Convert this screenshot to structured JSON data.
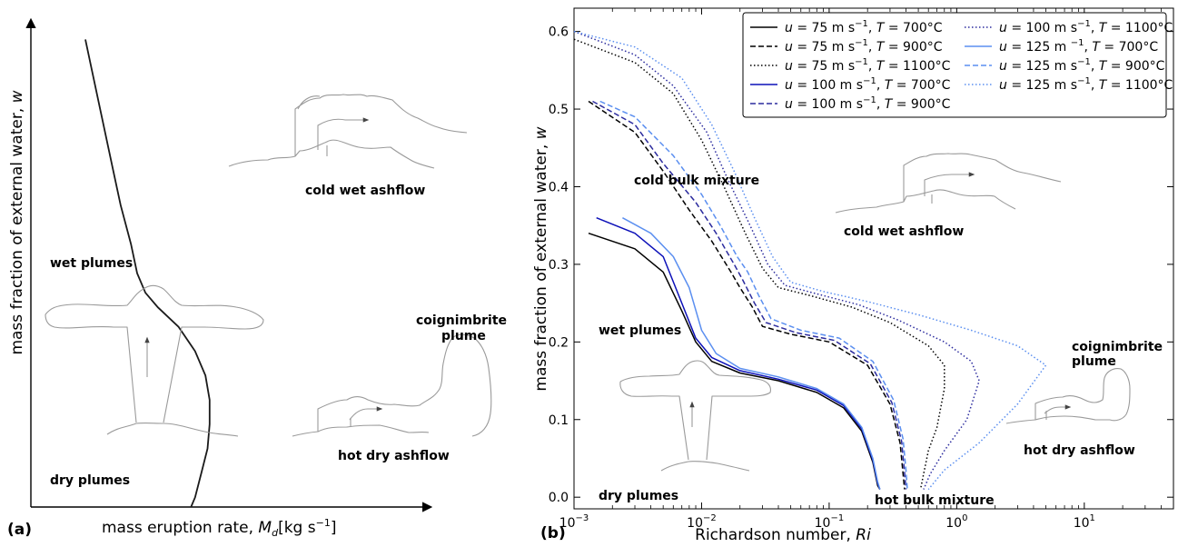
{
  "chart_data": [
    {
      "panel_label": "(a)",
      "type": "line",
      "xlabel": "mass eruption rate, ",
      "xlabel_math": "M",
      "xlabel_sub": "d",
      "xlabel_unit": "[kg s",
      "xlabel_exp": "−1",
      "xlabel_close": "]",
      "ylabel_text": "mass fraction of external water, ",
      "ylabel_var": "w",
      "annotations": {
        "wet_plumes": "wet plumes",
        "dry_plumes": "dry plumes",
        "cold_wet_ashflow": "cold wet ashflow",
        "hot_dry_ashflow": "hot dry ashflow",
        "coignimbrite_1": "coignimbrite",
        "coignimbrite_2": "plume"
      },
      "series": [
        {
          "values_note_free": true,
          "x": [
            0.0,
            0.03,
            0.08,
            0.13,
            0.17,
            0.22,
            0.25,
            0.29,
            0.35,
            0.45,
            0.53,
            0.58,
            0.6,
            0.6,
            0.59,
            0.56,
            0.53,
            0.51
          ],
          "y": [
            0.96,
            0.9,
            0.8,
            0.7,
            0.62,
            0.54,
            0.48,
            0.44,
            0.41,
            0.37,
            0.32,
            0.27,
            0.22,
            0.17,
            0.12,
            0.07,
            0.02,
            0.0
          ]
        }
      ]
    },
    {
      "panel_label": "(b)",
      "type": "line",
      "xlabel": "Richardson number, ",
      "xlabel_var": "Ri",
      "ylabel_text": "mass fraction of external water, ",
      "ylabel_var": "w",
      "xscale": "log",
      "xlim": [
        0.001,
        50
      ],
      "ylim": [
        -0.015,
        0.63
      ],
      "xticks": [
        {
          "v": 0.001,
          "base": "10",
          "exp": "−3"
        },
        {
          "v": 0.01,
          "base": "10",
          "exp": "−2"
        },
        {
          "v": 0.1,
          "base": "10",
          "exp": "−1"
        },
        {
          "v": 1,
          "base": "10",
          "exp": "0"
        },
        {
          "v": 10,
          "base": "10",
          "exp": "1"
        }
      ],
      "yticks": [
        "0.0",
        "0.1",
        "0.2",
        "0.3",
        "0.4",
        "0.5",
        "0.6"
      ],
      "legend_position": "top-right",
      "annotations": {
        "cold_bulk_mixture": "cold bulk mixture",
        "cold_wet_ashflow": "cold wet ashflow",
        "wet_plumes": "wet plumes",
        "dry_plumes": "dry plumes",
        "hot_bulk_mixture": "hot bulk mixture",
        "coignimbrite_1": "coignimbrite",
        "coignimbrite_2": "plume",
        "hot_dry_ashflow": "hot dry ashflow"
      },
      "series": [
        {
          "u": "75",
          "unit": "m s",
          "uexp": "−1",
          "T": "700°C",
          "color": "#000000",
          "dash": "solid",
          "x": [
            0.0013,
            0.003,
            0.005,
            0.007,
            0.009,
            0.012,
            0.02,
            0.04,
            0.08,
            0.13,
            0.18,
            0.22,
            0.24,
            0.25
          ],
          "y": [
            0.34,
            0.32,
            0.29,
            0.24,
            0.2,
            0.175,
            0.16,
            0.15,
            0.135,
            0.115,
            0.085,
            0.045,
            0.015,
            0.01
          ]
        },
        {
          "u": "75",
          "unit": "m s",
          "uexp": "−1",
          "T": "900°C",
          "color": "#000000",
          "dash": "dashed",
          "x": [
            0.0013,
            0.003,
            0.005,
            0.008,
            0.012,
            0.017,
            0.02,
            0.025,
            0.03,
            0.05,
            0.1,
            0.2,
            0.3,
            0.36,
            0.38,
            0.39
          ],
          "y": [
            0.51,
            0.47,
            0.42,
            0.37,
            0.33,
            0.29,
            0.27,
            0.245,
            0.22,
            0.21,
            0.2,
            0.17,
            0.12,
            0.07,
            0.03,
            0.01
          ]
        },
        {
          "u": "75",
          "unit": "m s",
          "uexp": "−1",
          "T": "1100°C",
          "color": "#000000",
          "dash": "dotted",
          "x": [
            0.001,
            0.003,
            0.006,
            0.01,
            0.015,
            0.022,
            0.03,
            0.04,
            0.07,
            0.15,
            0.3,
            0.6,
            0.8,
            0.8,
            0.7,
            0.6,
            0.55,
            0.52
          ],
          "y": [
            0.59,
            0.56,
            0.52,
            0.46,
            0.4,
            0.34,
            0.295,
            0.27,
            0.26,
            0.245,
            0.225,
            0.195,
            0.17,
            0.14,
            0.09,
            0.06,
            0.03,
            0.01
          ]
        },
        {
          "u": "100",
          "unit": "m s",
          "uexp": "−1",
          "T": "700°C",
          "color": "#0c10b8",
          "dash": "solid",
          "x": [
            0.0015,
            0.003,
            0.005,
            0.007,
            0.009,
            0.012,
            0.02,
            0.04,
            0.08,
            0.13,
            0.18,
            0.22,
            0.24,
            0.25
          ],
          "y": [
            0.36,
            0.34,
            0.31,
            0.25,
            0.205,
            0.18,
            0.163,
            0.152,
            0.138,
            0.118,
            0.088,
            0.048,
            0.018,
            0.01
          ]
        },
        {
          "u": "100",
          "unit": "m s",
          "uexp": "−1",
          "T": "900°C",
          "color": "#2b2b9e",
          "dash": "dashed",
          "x": [
            0.0014,
            0.003,
            0.005,
            0.009,
            0.013,
            0.018,
            0.021,
            0.026,
            0.032,
            0.055,
            0.11,
            0.21,
            0.31,
            0.37,
            0.39,
            0.4
          ],
          "y": [
            0.51,
            0.48,
            0.43,
            0.38,
            0.34,
            0.3,
            0.28,
            0.25,
            0.225,
            0.212,
            0.202,
            0.172,
            0.122,
            0.072,
            0.032,
            0.01
          ]
        },
        {
          "u": "100",
          "unit": "m s",
          "uexp": "−1",
          "T": "1100°C",
          "color": "#2b2b9e",
          "dash": "dotted",
          "x": [
            0.001,
            0.003,
            0.006,
            0.011,
            0.016,
            0.024,
            0.033,
            0.045,
            0.08,
            0.17,
            0.35,
            0.8,
            1.3,
            1.5,
            1.2,
            0.8,
            0.62,
            0.55
          ],
          "y": [
            0.6,
            0.57,
            0.53,
            0.47,
            0.41,
            0.35,
            0.3,
            0.273,
            0.262,
            0.248,
            0.228,
            0.2,
            0.175,
            0.15,
            0.1,
            0.06,
            0.03,
            0.01
          ]
        },
        {
          "u": "125",
          "unit": "m ",
          "uexp": "−1",
          "T": "700°C",
          "color": "#5b8ff0",
          "dash": "solid",
          "x": [
            0.0024,
            0.004,
            0.006,
            0.008,
            0.01,
            0.013,
            0.02,
            0.04,
            0.08,
            0.13,
            0.18,
            0.22,
            0.24,
            0.25
          ],
          "y": [
            0.36,
            0.34,
            0.31,
            0.27,
            0.215,
            0.185,
            0.166,
            0.155,
            0.14,
            0.12,
            0.09,
            0.05,
            0.02,
            0.01
          ]
        },
        {
          "u": "125",
          "unit": "m s",
          "uexp": "−1",
          "T": "900°C",
          "color": "#5b8ff0",
          "dash": "dashed",
          "x": [
            0.0016,
            0.003,
            0.006,
            0.01,
            0.014,
            0.019,
            0.023,
            0.028,
            0.035,
            0.06,
            0.12,
            0.22,
            0.32,
            0.38,
            0.4,
            0.41
          ],
          "y": [
            0.51,
            0.49,
            0.44,
            0.39,
            0.35,
            0.31,
            0.29,
            0.26,
            0.23,
            0.215,
            0.205,
            0.175,
            0.125,
            0.075,
            0.035,
            0.01
          ]
        },
        {
          "u": "125",
          "unit": "m s",
          "uexp": "−1",
          "T": "1100°C",
          "color": "#5b8ff0",
          "dash": "dotted",
          "x": [
            0.001,
            0.003,
            0.007,
            0.012,
            0.018,
            0.026,
            0.036,
            0.05,
            0.09,
            0.2,
            0.5,
            1.3,
            3,
            5,
            3,
            1.5,
            0.8,
            0.6
          ],
          "y": [
            0.6,
            0.58,
            0.54,
            0.48,
            0.42,
            0.36,
            0.31,
            0.277,
            0.265,
            0.252,
            0.235,
            0.215,
            0.195,
            0.17,
            0.12,
            0.07,
            0.035,
            0.01
          ]
        }
      ]
    }
  ]
}
